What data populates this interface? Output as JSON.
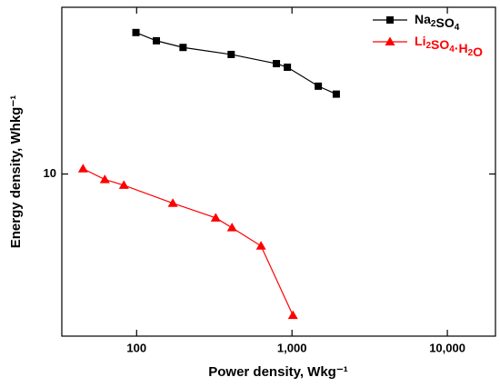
{
  "chart_data": {
    "type": "line",
    "xlabel": "Power density, Wkg⁻¹",
    "ylabel": "Energy density, Whkg⁻¹",
    "xscale": "log",
    "yscale": "log",
    "xlim": [
      33,
      20400
    ],
    "ylim": [
      3,
      34.5
    ],
    "xticks": [
      100,
      {
        "value": 1000,
        "label": "1,000"
      },
      {
        "value": 10000,
        "label": "10,000"
      }
    ],
    "yticks": [
      10
    ],
    "legend": "upper right",
    "series": [
      {
        "name": "Na2SO4",
        "color": "#000000",
        "marker": "square",
        "x": [
          99,
          134,
          199,
          406,
          794,
          934,
          1477,
          1928
        ],
        "values": [
          28.6,
          26.9,
          25.6,
          24.3,
          22.7,
          22.1,
          19.2,
          18.1
        ]
      },
      {
        "name": "Li2SO4·H2O",
        "color": "#ff0000",
        "marker": "triangle",
        "x": [
          45.2,
          62.4,
          82.8,
          171,
          323,
          411,
          632,
          1014
        ],
        "values": [
          10.4,
          9.6,
          9.2,
          8.05,
          7.22,
          6.71,
          5.86,
          3.5
        ]
      }
    ]
  }
}
